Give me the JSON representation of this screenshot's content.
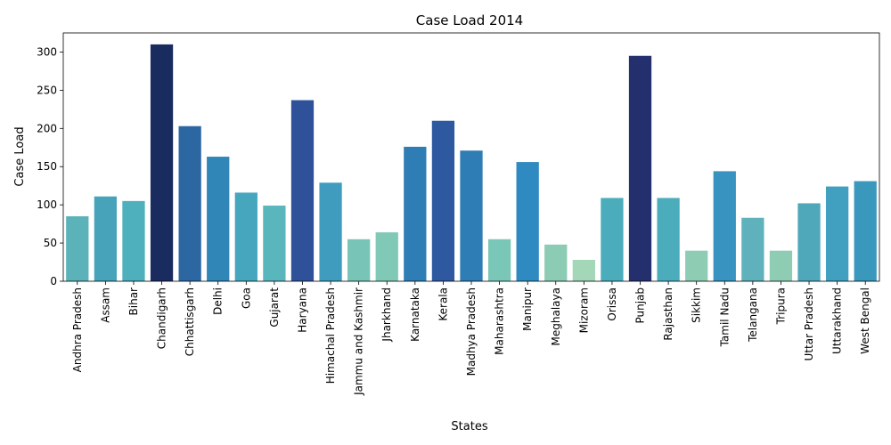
{
  "chart_data": {
    "type": "bar",
    "title": "Case Load 2014",
    "xlabel": "States",
    "ylabel": "Case Load",
    "ylim": [
      0,
      325
    ],
    "yticks": [
      0,
      50,
      100,
      150,
      200,
      250,
      300
    ],
    "grid": false,
    "categories": [
      "Andhra Pradesh",
      "Assam",
      "Bihar",
      "Chandigarh",
      "Chhattisgarh",
      "Delhi",
      "Goa",
      "Gujarat",
      "Haryana",
      "Himachal Pradesh",
      "Jammu and Kashmir",
      "Jharkhand",
      "Karnataka",
      "Kerala",
      "Madhya Pradesh",
      "Maharashtra",
      "Manipur",
      "Meghalaya",
      "Mizoram",
      "Orissa",
      "Punjab",
      "Rajasthan",
      "Sikkim",
      "Tamil Nadu",
      "Telangana",
      "Tripura",
      "Uttar Pradesh",
      "Uttarakhand",
      "West Bengal"
    ],
    "values": [
      85,
      111,
      105,
      310,
      203,
      163,
      116,
      99,
      237,
      129,
      55,
      64,
      176,
      210,
      171,
      55,
      156,
      48,
      28,
      109,
      295,
      109,
      40,
      144,
      83,
      40,
      102,
      124,
      131
    ],
    "colors": [
      "#5cb2b9",
      "#46a3ba",
      "#4db0bc",
      "#1a2b5f",
      "#2d67a2",
      "#2f86b7",
      "#45a6be",
      "#5ab6bd",
      "#2e519a",
      "#3f9cbf",
      "#78c5b7",
      "#80c9b6",
      "#2e7db5",
      "#2e589f",
      "#2f7db5",
      "#7ac6b7",
      "#2e8ac0",
      "#8cccb4",
      "#a4d6b8",
      "#4badbc",
      "#23306d",
      "#4badbc",
      "#8ecdb4",
      "#3893c1",
      "#5fb1bc",
      "#8ecdb4",
      "#4ea8b9",
      "#419fbf",
      "#3b98bd"
    ]
  }
}
